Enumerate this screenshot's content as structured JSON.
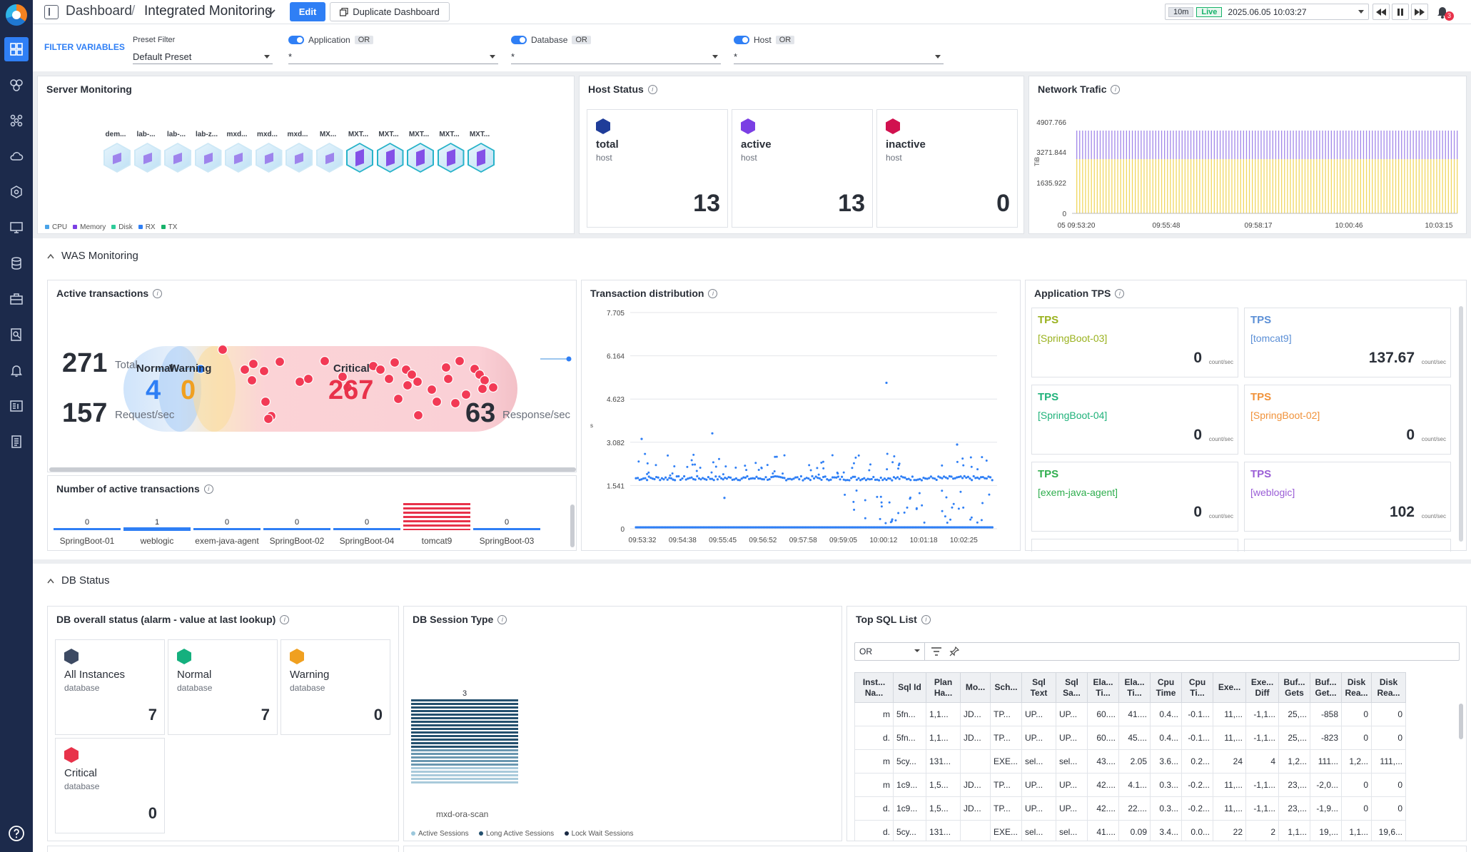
{
  "breadcrumb": {
    "root": "Dashboard",
    "sep": "/",
    "current": "Integrated Monitoring"
  },
  "toolbar": {
    "edit_label": "Edit",
    "duplicate_label": "Duplicate Dashboard"
  },
  "time": {
    "range": "10m",
    "live": "Live",
    "datetime": "2025.06.05 10:03:27"
  },
  "notifications": {
    "count": "3"
  },
  "filters": {
    "label": "FILTER VARIABLES",
    "preset": {
      "title": "Preset Filter",
      "value": "Default Preset"
    },
    "application": {
      "title": "Application",
      "op": "OR",
      "value": "*"
    },
    "database": {
      "title": "Database",
      "op": "OR",
      "value": "*"
    },
    "host": {
      "title": "Host",
      "op": "OR",
      "value": "*"
    }
  },
  "server": {
    "title": "Server Monitoring",
    "labels": [
      "dem...",
      "lab-...",
      "lab-...",
      "lab-z...",
      "mxd...",
      "mxd...",
      "mxd...",
      "MX...",
      "MXT...",
      "MXT...",
      "MXT...",
      "MXT...",
      "MXT..."
    ],
    "legend": [
      {
        "label": "CPU",
        "color": "#4aa3e8"
      },
      {
        "label": "Memory",
        "color": "#7b3fe4"
      },
      {
        "label": "Disk",
        "color": "#2ecc9a"
      },
      {
        "label": "RX",
        "color": "#2f7ff5"
      },
      {
        "label": "TX",
        "color": "#17b26a"
      }
    ]
  },
  "host_status": {
    "title": "Host Status",
    "cards": [
      {
        "name": "total",
        "sub": "host",
        "value": "13",
        "color": "#1f3d99"
      },
      {
        "name": "active",
        "sub": "host",
        "value": "13",
        "color": "#7b3fe4"
      },
      {
        "name": "inactive",
        "sub": "host",
        "value": "0",
        "color": "#d1114f"
      }
    ]
  },
  "network": {
    "title": "Network Trafic",
    "unit": "TiB",
    "y_ticks": [
      "4907.766",
      "3271.844",
      "1635.922",
      "0"
    ],
    "x_ticks": [
      "05 09:53:20",
      "09:55:48",
      "09:58:17",
      "10:00:46",
      "10:03:15"
    ]
  },
  "was": {
    "section": "WAS Monitoring",
    "active": {
      "title": "Active transactions",
      "total": "271",
      "total_label": "Total",
      "request": "157",
      "request_label": "Request/sec",
      "normal_label": "Normal",
      "normal": "4",
      "warning_label": "Warning",
      "warning": "0",
      "critical_label": "Critical",
      "critical": "267",
      "response": "63",
      "response_label": "Response/sec"
    },
    "number": {
      "title": "Number of active transactions",
      "items": [
        {
          "name": "SpringBoot-01",
          "value": "0"
        },
        {
          "name": "weblogic",
          "value": "1"
        },
        {
          "name": "exem-java-agent",
          "value": "0"
        },
        {
          "name": "SpringBoot-02",
          "value": "0"
        },
        {
          "name": "SpringBoot-04",
          "value": "0"
        },
        {
          "name": "tomcat9",
          "value": ""
        },
        {
          "name": "SpringBoot-03",
          "value": "0"
        }
      ]
    },
    "distribution": {
      "title": "Transaction distribution",
      "y_ticks": [
        "7.705",
        "6.164",
        "4.623",
        "3.082",
        "1.541",
        "0"
      ],
      "x_ticks": [
        "09:53:32",
        "09:54:38",
        "09:55:45",
        "09:56:52",
        "09:57:58",
        "09:59:05",
        "10:00:12",
        "10:01:18",
        "10:02:25"
      ],
      "ylabel": "s"
    },
    "tps": {
      "title": "Application TPS",
      "unit": "count/sec",
      "cards": [
        {
          "label": "TPS",
          "app": "[SpringBoot-03]",
          "value": "0",
          "color": "#9ab21e"
        },
        {
          "label": "TPS",
          "app": "[tomcat9]",
          "value": "137.67",
          "color": "#5b8fd6"
        },
        {
          "label": "TPS",
          "app": "[SpringBoot-04]",
          "value": "0",
          "color": "#1fb27a"
        },
        {
          "label": "TPS",
          "app": "[SpringBoot-02]",
          "value": "0",
          "color": "#f0923a"
        },
        {
          "label": "TPS",
          "app": "[exem-java-agent]",
          "value": "0",
          "color": "#2fae4e"
        },
        {
          "label": "TPS",
          "app": "[weblogic]",
          "value": "102",
          "color": "#9a5ed6"
        }
      ]
    }
  },
  "db": {
    "section": "DB Status",
    "overall": {
      "title": "DB overall status (alarm - value at last lookup)",
      "cards": [
        {
          "name": "All Instances",
          "sub": "database",
          "value": "7",
          "color": "#3d4a63"
        },
        {
          "name": "Normal",
          "sub": "database",
          "value": "7",
          "color": "#15b07e"
        },
        {
          "name": "Warning",
          "sub": "database",
          "value": "0",
          "color": "#f0a020"
        },
        {
          "name": "Critical",
          "sub": "database",
          "value": "0",
          "color": "#e8324a"
        }
      ]
    },
    "session": {
      "title": "DB Session Type",
      "bar_value": "3",
      "bar_label": "mxd-ora-scan",
      "legend": [
        "Active Sessions",
        "Long Active Sessions",
        "Lock Wait Sessions"
      ]
    },
    "topsql": {
      "title": "Top SQL List",
      "op": "OR",
      "columns": [
        "Inst... Na...",
        "Sql Id",
        "Plan Ha...",
        "Mo...",
        "Sch...",
        "Sql Text",
        "Sql Sa...",
        "Ela... Ti...",
        "Ela... Ti...",
        "Cpu Time",
        "Cpu Ti...",
        "Exe...",
        "Exe... Diff",
        "Buf... Gets",
        "Buf... Get...",
        "Disk Rea...",
        "Disk Rea..."
      ],
      "rows": [
        [
          "m",
          "5fn...",
          "1,1...",
          "JD...",
          "TP...",
          "UP...",
          "UP...",
          "60....",
          "41....",
          "0.4...",
          "-0.1...",
          "11,...",
          "-1,1...",
          "25,...",
          "-858",
          "0",
          "0"
        ],
        [
          "d.",
          "5fn...",
          "1,1...",
          "JD...",
          "TP...",
          "UP...",
          "UP...",
          "60....",
          "45....",
          "0.4...",
          "-0.1...",
          "11,...",
          "-1,1...",
          "25,...",
          "-823",
          "0",
          "0"
        ],
        [
          "m",
          "5cy...",
          "131...",
          "",
          "EXE...",
          "sel...",
          "sel...",
          "43....",
          "2.05",
          "3.6...",
          "0.2...",
          "24",
          "4",
          "1,2...",
          "111...",
          "1,2...",
          "111,..."
        ],
        [
          "m",
          "1c9...",
          "1,5...",
          "JD...",
          "TP...",
          "UP...",
          "UP...",
          "42....",
          "4.1...",
          "0.3...",
          "-0.2...",
          "11,...",
          "-1,1...",
          "23,...",
          "-2,0...",
          "0",
          "0"
        ],
        [
          "d.",
          "1c9...",
          "1,5...",
          "JD...",
          "TP...",
          "UP...",
          "UP...",
          "42....",
          "22....",
          "0.3...",
          "-0.2...",
          "11,...",
          "-1,1...",
          "23,...",
          "-1,9...",
          "0",
          "0"
        ],
        [
          "d.",
          "5cy...",
          "131...",
          "",
          "EXE...",
          "sel...",
          "sel...",
          "41....",
          "0.09",
          "3.4...",
          "0.0...",
          "22",
          "2",
          "1,1...",
          "19,...",
          "1,1...",
          "19,6..."
        ]
      ]
    }
  }
}
